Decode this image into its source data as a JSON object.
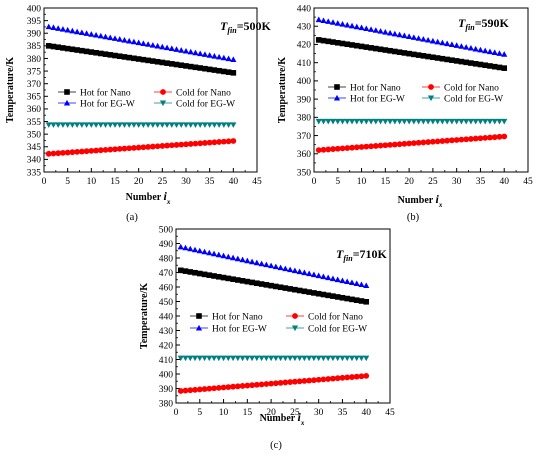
{
  "colors": {
    "hot_nano": "#000000",
    "cold_nano": "#ff0000",
    "hot_egw": "#0000ff",
    "cold_egw": "#008080"
  },
  "chart_data": [
    {
      "type": "scatter",
      "panel_label": "(a)",
      "annotation": {
        "main": "T",
        "sub": "fin",
        "value": "=500K"
      },
      "xlabel": {
        "main": "Number",
        "var": "i",
        "sub": "x"
      },
      "ylabel": "Temperature/K",
      "xlim": [
        0,
        45
      ],
      "ylim": [
        335,
        400
      ],
      "xticks": [
        0,
        5,
        10,
        15,
        20,
        25,
        30,
        35,
        40,
        45
      ],
      "yticks": [
        335,
        340,
        345,
        350,
        355,
        360,
        365,
        370,
        375,
        380,
        385,
        390,
        395,
        400
      ],
      "x_points": {
        "start": 1,
        "end": 40,
        "step": 1
      },
      "legend": [
        "Hot for Nano",
        "Cold for Nano",
        "Hot for EG-W",
        "Cold for EG-W"
      ],
      "series": [
        {
          "name": "Hot for Nano",
          "marker": "square",
          "color": "#000000",
          "start": 385.0,
          "end": 374.3
        },
        {
          "name": "Cold for Nano",
          "marker": "circle",
          "color": "#ff0000",
          "start": 342.2,
          "end": 347.3
        },
        {
          "name": "Hot for EG-W",
          "marker": "triangle-up",
          "color": "#0000ff",
          "start": 392.6,
          "end": 379.6
        },
        {
          "name": "Cold for EG-W",
          "marker": "triangle-down",
          "color": "#008080",
          "start": 353.7,
          "end": 353.7
        }
      ]
    },
    {
      "type": "scatter",
      "panel_label": "(b)",
      "annotation": {
        "main": "T",
        "sub": "fin",
        "value": "=590K"
      },
      "xlabel": {
        "main": "Number",
        "var": "i",
        "sub": "x"
      },
      "ylabel": "Temperature/K",
      "xlim": [
        0,
        45
      ],
      "ylim": [
        350,
        440
      ],
      "xticks": [
        0,
        5,
        10,
        15,
        20,
        25,
        30,
        35,
        40,
        45
      ],
      "yticks": [
        350,
        360,
        370,
        380,
        390,
        400,
        410,
        420,
        430,
        440
      ],
      "x_points": {
        "start": 1,
        "end": 40,
        "step": 1
      },
      "legend": [
        "Hot for Nano",
        "Cold for Nano",
        "Hot for EG-W",
        "Cold for EG-W"
      ],
      "series": [
        {
          "name": "Hot for Nano",
          "marker": "square",
          "color": "#000000",
          "start": 422.5,
          "end": 407.0
        },
        {
          "name": "Cold for Nano",
          "marker": "circle",
          "color": "#ff0000",
          "start": 362.0,
          "end": 369.5
        },
        {
          "name": "Hot for EG-W",
          "marker": "triangle-up",
          "color": "#0000ff",
          "start": 433.6,
          "end": 414.6
        },
        {
          "name": "Cold for EG-W",
          "marker": "triangle-down",
          "color": "#008080",
          "start": 377.8,
          "end": 377.8
        }
      ]
    },
    {
      "type": "scatter",
      "panel_label": "(c)",
      "annotation": {
        "main": "T",
        "sub": "fin",
        "value": "=710K"
      },
      "xlabel": {
        "main": "Number",
        "var": "i",
        "sub": "x"
      },
      "ylabel": "Temperature/K",
      "xlim": [
        0,
        45
      ],
      "ylim": [
        380,
        500
      ],
      "xticks": [
        0,
        5,
        10,
        15,
        20,
        25,
        30,
        35,
        40,
        45
      ],
      "yticks": [
        380,
        390,
        400,
        410,
        420,
        430,
        440,
        450,
        460,
        470,
        480,
        490,
        500
      ],
      "x_points": {
        "start": 1,
        "end": 40,
        "step": 1
      },
      "legend": [
        "Hot for Nano",
        "Cold for Nano",
        "Hot for EG-W",
        "Cold for EG-W"
      ],
      "series": [
        {
          "name": "Hot for Nano",
          "marker": "square",
          "color": "#000000",
          "start": 471.5,
          "end": 449.8
        },
        {
          "name": "Cold for Nano",
          "marker": "circle",
          "color": "#ff0000",
          "start": 388.3,
          "end": 398.7
        },
        {
          "name": "Hot for EG-W",
          "marker": "triangle-up",
          "color": "#0000ff",
          "start": 487.7,
          "end": 461.0
        },
        {
          "name": "Cold for EG-W",
          "marker": "triangle-down",
          "color": "#008080",
          "start": 411.0,
          "end": 411.0
        }
      ]
    }
  ]
}
